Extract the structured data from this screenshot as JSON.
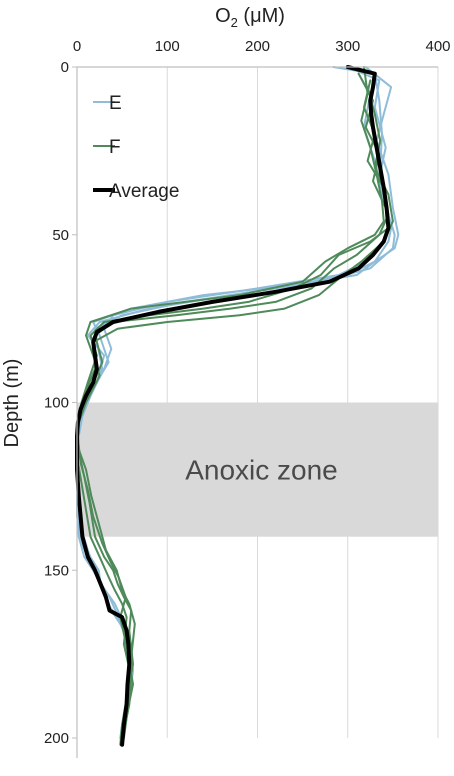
{
  "chart_data": {
    "type": "line",
    "x_axis_title": "O₂ (μM)",
    "y_axis_title": "Depth (m)",
    "xlim": [
      0,
      400
    ],
    "ylim": [
      0,
      200
    ],
    "y_inverted": true,
    "x_ticks": [
      0,
      100,
      200,
      300,
      400
    ],
    "y_ticks": [
      0,
      50,
      100,
      150,
      200
    ],
    "x_axis_position": "top",
    "grid": "vertical",
    "legend_position": "top-left",
    "anoxic_zone": {
      "label": "Anoxic zone",
      "depth_range": [
        100,
        140
      ],
      "color": "#d9d9d9"
    },
    "series": [
      {
        "name": "E",
        "color": "#8fbcd8",
        "width": 2,
        "profiles": [
          [
            [
              284,
              0
            ],
            [
              330,
              2
            ],
            [
              335,
              10
            ],
            [
              338,
              20
            ],
            [
              336,
              30
            ],
            [
              340,
              40
            ],
            [
              348,
              48
            ],
            [
              345,
              52
            ],
            [
              330,
              58
            ],
            [
              300,
              62
            ],
            [
              220,
              66
            ],
            [
              120,
              70
            ],
            [
              50,
              74
            ],
            [
              20,
              78
            ],
            [
              22,
              82
            ],
            [
              28,
              90
            ],
            [
              20,
              95
            ],
            [
              12,
              100
            ],
            [
              3,
              106
            ],
            [
              0,
              112
            ],
            [
              0,
              130
            ],
            [
              2,
              140
            ],
            [
              8,
              146
            ],
            [
              18,
              150
            ],
            [
              30,
              156
            ],
            [
              38,
              162
            ],
            [
              48,
              166
            ],
            [
              55,
              170
            ],
            [
              58,
              180
            ],
            [
              55,
              190
            ],
            [
              50,
              196
            ],
            [
              48,
              200
            ]
          ],
          [
            [
              300,
              0
            ],
            [
              335,
              4
            ],
            [
              330,
              12
            ],
            [
              342,
              24
            ],
            [
              334,
              34
            ],
            [
              345,
              44
            ],
            [
              352,
              50
            ],
            [
              350,
              54
            ],
            [
              325,
              60
            ],
            [
              270,
              64
            ],
            [
              170,
              68
            ],
            [
              80,
              72
            ],
            [
              25,
              76
            ],
            [
              12,
              80
            ],
            [
              30,
              86
            ],
            [
              22,
              94
            ],
            [
              8,
              100
            ],
            [
              0,
              108
            ],
            [
              0,
              128
            ],
            [
              4,
              138
            ],
            [
              10,
              144
            ],
            [
              24,
              150
            ],
            [
              26,
              154
            ],
            [
              42,
              160
            ],
            [
              52,
              166
            ],
            [
              60,
              172
            ],
            [
              62,
              180
            ],
            [
              58,
              188
            ],
            [
              52,
              196
            ],
            [
              50,
              200
            ]
          ],
          [
            [
              320,
              0
            ],
            [
              348,
              6
            ],
            [
              340,
              14
            ],
            [
              332,
              22
            ],
            [
              345,
              32
            ],
            [
              350,
              42
            ],
            [
              356,
              50
            ],
            [
              352,
              54
            ],
            [
              330,
              58
            ],
            [
              310,
              62
            ],
            [
              240,
              65
            ],
            [
              140,
              68
            ],
            [
              60,
              72
            ],
            [
              18,
              76
            ],
            [
              25,
              80
            ],
            [
              35,
              88
            ],
            [
              26,
              92
            ],
            [
              15,
              98
            ],
            [
              6,
              104
            ],
            [
              2,
              110
            ],
            [
              0,
              120
            ],
            [
              0,
              134
            ],
            [
              6,
              142
            ],
            [
              14,
              148
            ],
            [
              22,
              152
            ],
            [
              36,
              158
            ],
            [
              46,
              164
            ]
          ],
          [
            [
              312,
              2
            ],
            [
              325,
              8
            ],
            [
              318,
              18
            ],
            [
              330,
              28
            ],
            [
              340,
              38
            ],
            [
              346,
              46
            ],
            [
              340,
              52
            ],
            [
              320,
              58
            ],
            [
              290,
              62
            ],
            [
              200,
              66
            ],
            [
              100,
              70
            ],
            [
              40,
              74
            ],
            [
              30,
              78
            ],
            [
              38,
              84
            ],
            [
              30,
              90
            ],
            [
              18,
              96
            ],
            [
              5,
              102
            ],
            [
              0,
              110
            ],
            [
              0,
              124
            ],
            [
              3,
              136
            ],
            [
              12,
              144
            ],
            [
              20,
              150
            ],
            [
              28,
              156
            ],
            [
              34,
              160
            ],
            [
              50,
              166
            ]
          ]
        ]
      },
      {
        "name": "F",
        "color": "#4e8a5a",
        "width": 2,
        "profiles": [
          [
            [
              318,
              0
            ],
            [
              322,
              8
            ],
            [
              315,
              16
            ],
            [
              325,
              24
            ],
            [
              332,
              32
            ],
            [
              338,
              40
            ],
            [
              340,
              46
            ],
            [
              330,
              50
            ],
            [
              300,
              54
            ],
            [
              275,
              58
            ],
            [
              250,
              64
            ],
            [
              180,
              68
            ],
            [
              120,
              70
            ],
            [
              60,
              72
            ],
            [
              15,
              76
            ],
            [
              10,
              80
            ],
            [
              18,
              86
            ],
            [
              25,
              92
            ],
            [
              10,
              100
            ],
            [
              2,
              106
            ],
            [
              0,
              116
            ],
            [
              5,
              124
            ],
            [
              10,
              132
            ],
            [
              15,
              140
            ],
            [
              25,
              146
            ],
            [
              35,
              152
            ],
            [
              42,
              156
            ],
            [
              50,
              160
            ],
            [
              55,
              164
            ],
            [
              52,
              172
            ],
            [
              60,
              182
            ],
            [
              58,
              190
            ],
            [
              52,
              198
            ]
          ],
          [
            [
              325,
              4
            ],
            [
              318,
              12
            ],
            [
              330,
              20
            ],
            [
              322,
              28
            ],
            [
              340,
              36
            ],
            [
              345,
              44
            ],
            [
              335,
              50
            ],
            [
              310,
              56
            ],
            [
              285,
              60
            ],
            [
              260,
              66
            ],
            [
              220,
              70
            ],
            [
              170,
              72
            ],
            [
              110,
              74
            ],
            [
              40,
              76
            ],
            [
              20,
              80
            ],
            [
              28,
              88
            ],
            [
              15,
              96
            ],
            [
              3,
              104
            ],
            [
              0,
              112
            ],
            [
              8,
              122
            ],
            [
              14,
              130
            ],
            [
              20,
              140
            ],
            [
              30,
              146
            ],
            [
              40,
              150
            ],
            [
              45,
              154
            ],
            [
              52,
              158
            ],
            [
              60,
              162
            ],
            [
              58,
              168
            ],
            [
              62,
              178
            ],
            [
              55,
              188
            ],
            [
              50,
              196
            ],
            [
              48,
              202
            ]
          ],
          [
            [
              312,
              2
            ],
            [
              328,
              10
            ],
            [
              320,
              18
            ],
            [
              335,
              26
            ],
            [
              328,
              34
            ],
            [
              342,
              42
            ],
            [
              345,
              48
            ],
            [
              325,
              52
            ],
            [
              290,
              56
            ],
            [
              270,
              62
            ],
            [
              240,
              66
            ],
            [
              190,
              70
            ],
            [
              140,
              72
            ],
            [
              80,
              74
            ],
            [
              30,
              76
            ],
            [
              15,
              80
            ],
            [
              22,
              86
            ],
            [
              12,
              94
            ],
            [
              5,
              100
            ],
            [
              0,
              108
            ],
            [
              4,
              118
            ],
            [
              12,
              126
            ],
            [
              18,
              134
            ],
            [
              28,
              142
            ],
            [
              38,
              148
            ],
            [
              46,
              152
            ],
            [
              54,
              158
            ],
            [
              48,
              164
            ],
            [
              56,
              174
            ],
            [
              62,
              184
            ],
            [
              56,
              192
            ],
            [
              52,
              200
            ]
          ],
          [
            [
              322,
              6
            ],
            [
              330,
              14
            ],
            [
              336,
              22
            ],
            [
              330,
              30
            ],
            [
              345,
              38
            ],
            [
              350,
              46
            ],
            [
              340,
              52
            ],
            [
              315,
              58
            ],
            [
              295,
              62
            ],
            [
              268,
              68
            ],
            [
              230,
              72
            ],
            [
              180,
              74
            ],
            [
              100,
              76
            ],
            [
              45,
              78
            ],
            [
              18,
              82
            ],
            [
              20,
              90
            ],
            [
              8,
              98
            ],
            [
              0,
              106
            ],
            [
              2,
              114
            ],
            [
              10,
              120
            ],
            [
              16,
              128
            ],
            [
              24,
              136
            ],
            [
              32,
              144
            ],
            [
              44,
              150
            ],
            [
              50,
              156
            ],
            [
              58,
              160
            ],
            [
              64,
              166
            ],
            [
              60,
              176
            ],
            [
              57,
              186
            ],
            [
              53,
              194
            ]
          ]
        ]
      },
      {
        "name": "Average",
        "color": "#000000",
        "width": 4,
        "profiles": [
          [
            [
              300,
              0
            ],
            [
              330,
              2
            ],
            [
              328,
              6
            ],
            [
              325,
              10
            ],
            [
              326,
              14
            ],
            [
              328,
              18
            ],
            [
              332,
              24
            ],
            [
              336,
              30
            ],
            [
              340,
              36
            ],
            [
              343,
              42
            ],
            [
              345,
              48
            ],
            [
              340,
              52
            ],
            [
              328,
              56
            ],
            [
              312,
              60
            ],
            [
              280,
              64
            ],
            [
              220,
              67
            ],
            [
              150,
              70
            ],
            [
              90,
              73
            ],
            [
              40,
              76
            ],
            [
              22,
              79
            ],
            [
              18,
              82
            ],
            [
              20,
              86
            ],
            [
              22,
              90
            ],
            [
              18,
              94
            ],
            [
              10,
              98
            ],
            [
              4,
              102
            ],
            [
              1,
              106
            ],
            [
              0,
              110
            ],
            [
              0,
              120
            ],
            [
              2,
              128
            ],
            [
              4,
              134
            ],
            [
              6,
              140
            ],
            [
              12,
              146
            ],
            [
              20,
              150
            ],
            [
              26,
              154
            ],
            [
              32,
              158
            ],
            [
              36,
              162
            ],
            [
              50,
              164
            ],
            [
              55,
              168
            ],
            [
              57,
              172
            ],
            [
              58,
              178
            ],
            [
              56,
              184
            ],
            [
              55,
              190
            ],
            [
              52,
              196
            ],
            [
              50,
              202
            ]
          ]
        ]
      }
    ]
  }
}
